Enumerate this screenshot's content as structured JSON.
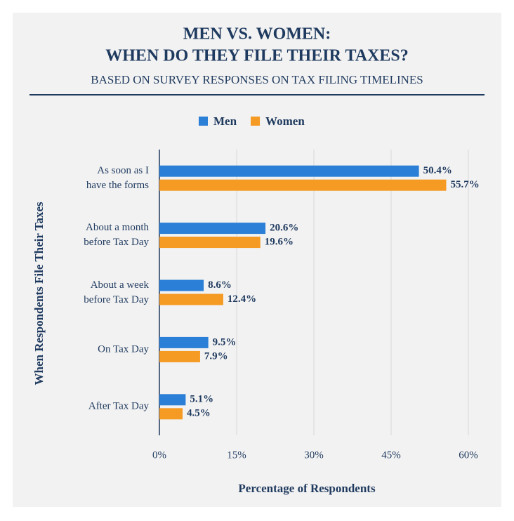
{
  "chart_data": {
    "type": "hbar",
    "title": "MEN VS. WOMEN:",
    "title_line2": "WHEN DO THEY FILE THEIR TAXES?",
    "subtitle": "BASED ON SURVEY RESPONSES ON TAX FILING TIMELINES",
    "x_label": "Percentage of Respondents",
    "y_label": "When Respondents File Their Taxes",
    "categories": [
      "As soon as I\nhave the forms",
      "About a month\nbefore Tax Day",
      "About a week\nbefore Tax Day",
      "On Tax Day",
      "After Tax Day"
    ],
    "series": [
      {
        "name": "Men",
        "color": "#2b7fd6",
        "values": [
          50.4,
          20.6,
          8.6,
          9.5,
          5.1
        ],
        "value_labels": [
          "50.4%",
          "20.6%",
          "8.6%",
          "9.5%",
          "5.1%"
        ]
      },
      {
        "name": "Women",
        "color": "#f59a23",
        "values": [
          55.7,
          19.6,
          12.4,
          7.9,
          4.5
        ],
        "value_labels": [
          "55.7%",
          "19.6%",
          "12.4%",
          "7.9%",
          "4.5%"
        ]
      }
    ],
    "xlim": [
      0,
      60
    ],
    "xticks": [
      {
        "value": 0,
        "label": "0%"
      },
      {
        "value": 15,
        "label": "15%"
      },
      {
        "value": 30,
        "label": "30%"
      },
      {
        "value": 45,
        "label": "45%"
      },
      {
        "value": 60,
        "label": "60%"
      }
    ],
    "grid": true
  }
}
